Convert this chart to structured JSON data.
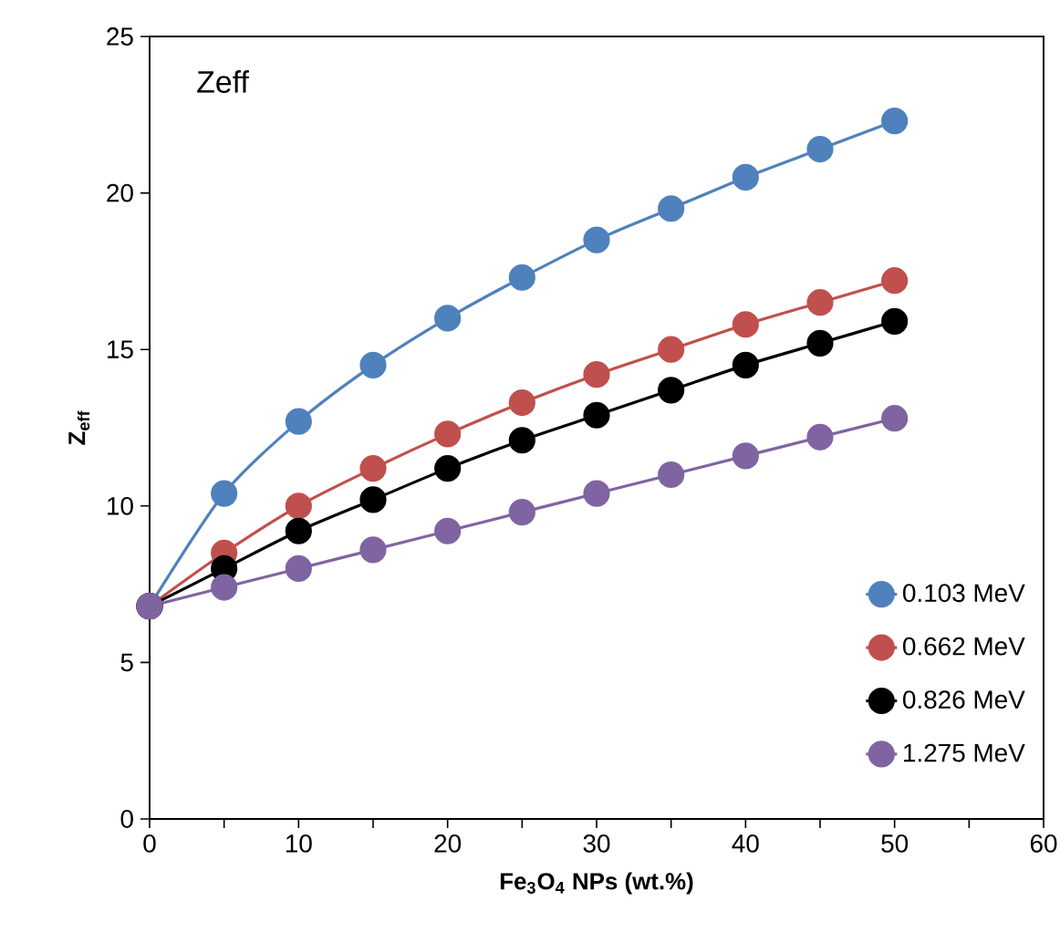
{
  "chart_data": {
    "type": "line",
    "title": "Zeff",
    "xlabel": "**Fe$_{3}$O$_{4}$ NPs (wt.%)**",
    "ylabel": "**Z$_{eff}$**",
    "x": [
      0,
      5,
      10,
      15,
      20,
      25,
      30,
      35,
      40,
      45,
      50
    ],
    "series": [
      {
        "name": "0.103 MeV",
        "color": "#4f81bd",
        "values": [
          6.8,
          10.4,
          12.7,
          14.5,
          16.0,
          17.3,
          18.5,
          19.5,
          20.5,
          21.4,
          22.3
        ]
      },
      {
        "name": "0.662 MeV",
        "color": "#c0504d",
        "values": [
          6.8,
          8.5,
          10.0,
          11.2,
          12.3,
          13.3,
          14.2,
          15.0,
          15.8,
          16.5,
          17.2
        ]
      },
      {
        "name": "0.826 MeV",
        "color": "#000000",
        "values": [
          6.8,
          8.0,
          9.2,
          10.2,
          11.2,
          12.1,
          12.9,
          13.7,
          14.5,
          15.2,
          15.9
        ]
      },
      {
        "name": "1.275 MeV",
        "color": "#8064a2",
        "values": [
          6.8,
          7.4,
          8.0,
          8.6,
          9.2,
          9.8,
          10.4,
          11.0,
          11.6,
          12.2,
          12.8
        ]
      }
    ],
    "xlim": [
      0,
      60
    ],
    "ylim": [
      0,
      25
    ],
    "xticks": [
      0,
      {
        "value": 5,
        "label": null
      },
      10,
      {
        "value": 15,
        "label": null
      },
      20,
      {
        "value": 25,
        "label": null
      },
      30,
      {
        "value": 35,
        "label": null
      },
      40,
      {
        "value": 45,
        "label": null
      },
      50,
      {
        "value": 55,
        "label": null
      },
      60
    ],
    "yticks": [
      0,
      5,
      10,
      15,
      20,
      25
    ],
    "grid": false,
    "legend": "bottom right",
    "marker": "circle",
    "line_style": "solid"
  }
}
